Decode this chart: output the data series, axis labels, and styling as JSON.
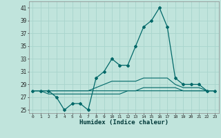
{
  "title": "",
  "xlabel": "Humidex (Indice chaleur)",
  "ylabel": "",
  "background_color": "#c0e4dc",
  "grid_color": "#a8d4cc",
  "line_color": "#006868",
  "xlim": [
    -0.5,
    23.5
  ],
  "ylim": [
    24.5,
    42
  ],
  "yticks": [
    25,
    27,
    29,
    31,
    33,
    35,
    37,
    39,
    41
  ],
  "xticks": [
    0,
    1,
    2,
    3,
    4,
    5,
    6,
    7,
    8,
    9,
    10,
    11,
    12,
    13,
    14,
    15,
    16,
    17,
    18,
    19,
    20,
    21,
    22,
    23
  ],
  "main_series": [
    28,
    28,
    28,
    27,
    25,
    26,
    26,
    25,
    30,
    31,
    33,
    32,
    32,
    35,
    38,
    39,
    41,
    38,
    30,
    29,
    29,
    29,
    28,
    28
  ],
  "line2": [
    28,
    28,
    28,
    28,
    28,
    28,
    28,
    28,
    28.5,
    29,
    29.5,
    29.5,
    29.5,
    29.5,
    30,
    30,
    30,
    30,
    29,
    28.5,
    28.5,
    28.5,
    28,
    28
  ],
  "line3": [
    28,
    28,
    28,
    28,
    28,
    28,
    28,
    28,
    28,
    28,
    28,
    28,
    28,
    28,
    28.5,
    28.5,
    28.5,
    28.5,
    28.5,
    28,
    28,
    28,
    28,
    28
  ],
  "line4": [
    28,
    28,
    27.5,
    27.5,
    27.5,
    27.5,
    27.5,
    27.5,
    27.5,
    27.5,
    27.5,
    27.5,
    28,
    28,
    28,
    28,
    28,
    28,
    28,
    28,
    28,
    28,
    28,
    28
  ]
}
